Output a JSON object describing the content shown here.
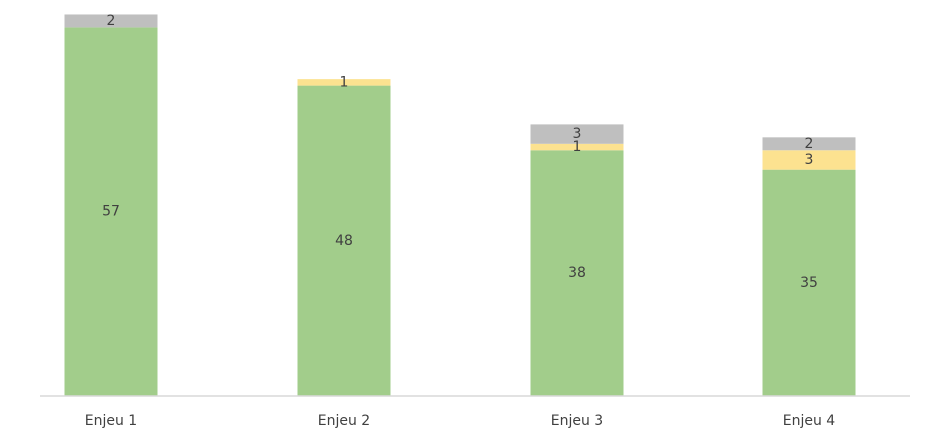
{
  "chart_data": {
    "type": "bar",
    "stacked": true,
    "categories": [
      "Enjeu 1",
      "Enjeu 2",
      "Enjeu 3",
      "Enjeu 4"
    ],
    "series": [
      {
        "values": [
          57,
          48,
          38,
          35
        ],
        "color": "#a2cd8b"
      },
      {
        "values": [
          0,
          1,
          1,
          3
        ],
        "color": "#fce290"
      },
      {
        "values": [
          2,
          0,
          3,
          2
        ],
        "color": "#bfbfbf"
      }
    ],
    "title": "",
    "xlabel": "",
    "ylabel": "",
    "ylim": [
      0,
      60
    ],
    "grid": false,
    "legend": "none",
    "axis_color": "#d9d9d9"
  }
}
